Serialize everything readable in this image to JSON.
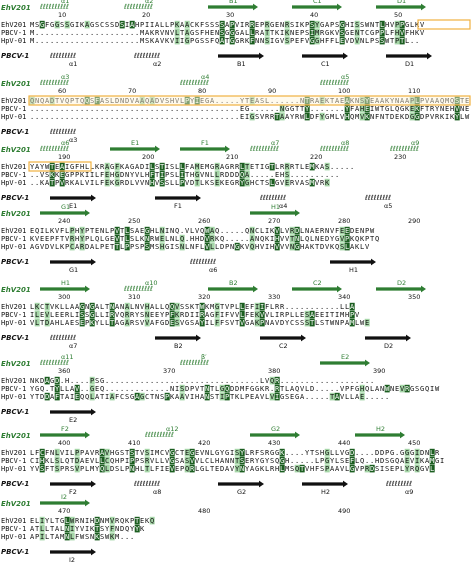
{
  "ref_label": "EhV201",
  "bottom_label": "PBCV-1",
  "seq_names": [
    "EhV201",
    "PBCV-1",
    "HpV-01"
  ],
  "colors": {
    "green": "#2e7d32",
    "identical_bg": "#1b5e20",
    "similar_bg": "#a5d6a7",
    "box": "#f0b040"
  },
  "blocks": [
    {
      "top_ss": [
        {
          "label": "α1",
          "kind": "helix"
        },
        {
          "label": "α2",
          "kind": "helix"
        },
        {
          "label": "B1",
          "kind": "arrow"
        },
        {
          "label": "C1",
          "kind": "arrow"
        },
        {
          "label": "D1",
          "kind": "arrow"
        }
      ],
      "numbers": [
        "10",
        "20",
        "30",
        "40",
        "50"
      ],
      "rows": [
        "MSGFGGSSGIKAGSCSSDSIAHPIIALLPKAACKFSSSSAPVIRREPRGENRSIKPSYGAPSGHISSWNTLHVPPGLKV",
        "M.....................MAKRVNVLTAGSFHENSGGGALLRATTKIKNEPSIMRGKVSGENTCGPPLFHVFHKV",
        "M.....................MSKAVKVIIGPGSSFQATGGRKFNNSIGVSPEFVGGHFFLEVDVNLPSSWTPTL.."
      ],
      "bottom_ss": [
        "α1",
        "α2",
        "B1",
        "C1",
        "D1"
      ]
    },
    {
      "top_ss": [
        {
          "label": "α3",
          "kind": "helix"
        },
        {
          "label": "α4",
          "kind": "helix"
        },
        {
          "label": "α5",
          "kind": "helix"
        }
      ],
      "numbers": [
        "60",
        "70",
        "80",
        "90",
        "100",
        "110"
      ],
      "rows": [
        "QNQADTVQPTQQSFASLDNDVAAQADVSHVLPYIEGA.....YTEASL......NTRAEKTAEAKNSYEAAKYNAAPLPVAAQMQSTEMPDF",
        "..........................................EG......NGGTTY.......YFAHEIWTGLQGKEKFTRYNEHVNEAHLRE",
        "..........................................EIGSVRRTAAYRWLDFYGMLVHQMVKNFNTDEKDGGDPVRKIKYLWQPRSSK"
      ],
      "bottom_ss": [
        "α3"
      ]
    },
    {
      "top_ss": [
        {
          "label": "α6",
          "kind": "helix"
        },
        {
          "label": "E1",
          "kind": "arrow"
        },
        {
          "label": "F1",
          "kind": "arrow"
        },
        {
          "label": "α7",
          "kind": "helix"
        },
        {
          "label": "α8",
          "kind": "helix"
        },
        {
          "label": "α9",
          "kind": "helix"
        }
      ],
      "numbers": [
        "190",
        "200",
        "210",
        "220",
        "230"
      ],
      "rows": [
        "YAYWTEAIGFHLLKRAGFKAGADILSTISLLFAMEMGRAGRRLTETIGTLRRRTLEMKAS.....",
        "..VSKKEGPPKIILFEHGDNYVLHFTIPSLITHGVNLLRDDDQA.....EHS..........",
        "..KATPVRKALVILFEKGRDLVVNHVSSLLPVDTLKSEKEGRYGHCTSLGVERVASMVRK"
      ],
      "bottom_ss": [
        "E1",
        "F1",
        "α4",
        "α5"
      ]
    },
    {
      "top_ss": [
        {
          "label": "G1",
          "kind": "arrow"
        },
        {
          "label": "H1",
          "kind": "arrow"
        }
      ],
      "numbers": [
        "240",
        "250",
        "260",
        "270",
        "280",
        "290"
      ],
      "rows": [
        "EQILKVFLPHYPTENLPVTLSAEGHLNINQ.VLVQWAQ.....QNCLIKVLVRDLNAERNVFEEDENPW",
        "KVEEPFTVRHYPLQLGEVTLSLKNRWELNLQ.HHDVRKQ.....ANQKIHVVTNLQLNEDYGVPKQKPTQ",
        "AGVDVLKPCARDALPETTLPPSPSMSHGISNLNFLVLLDPNGKVQHVIHVVVNGHAKTDVKQSLAKLV"
      ],
      "bottom_ss": [
        "G1",
        "α6",
        "H1"
      ]
    },
    {
      "top_ss": [
        {
          "label": "H1",
          "kind": "arrow"
        },
        {
          "label": "α10",
          "kind": "helix"
        },
        {
          "label": "B2",
          "kind": "arrow"
        },
        {
          "label": "C2",
          "kind": "arrow"
        },
        {
          "label": "D2",
          "kind": "arrow"
        }
      ],
      "numbers": [
        "300",
        "310",
        "320",
        "330",
        "340",
        "350"
      ],
      "rows": [
        "LKCTVKLLAAGNGALTNANALNVHALLQQVSSKTWKMGTVPLLEFIIFLRR...........LLA",
        "ILEVLEERLISSGLLIRVQRRYSNEEYPFKRDIIRAGFIFVVLFEKVVLIRPLLESAEEITIMHPV",
        "VLTDAHLAESEPKYLLTAGARSVVAFGDESVGSAYILFFSVTVGAKPNAVDYCSSSTLSTWNPAMLWE"
      ],
      "bottom_ss": [
        "α7",
        "B2",
        "C2",
        "D2"
      ]
    },
    {
      "top_ss": [
        {
          "label": "α11",
          "kind": "helix"
        },
        {
          "label": "β′",
          "kind": "helix"
        },
        {
          "label": "E2",
          "kind": "arrow"
        }
      ],
      "numbers": [
        "360",
        "370",
        "380",
        "390"
      ],
      "rows": [
        "NKDAGD.H....PSG...............................LVQR...................",
        "YGQ.TYLLAV..GEQ.............NISDPVTNTLGQDDMFGGKR.RTLAQVLD.....VPFGHQLANWNEVRGSGQIW",
        "YTDDAFTAIEQQLATIAFCSGAGCTNSPKAAVIHANSTIPTKLPEAVLVIGSEGA.....TAVLLAE....."
      ],
      "bottom_ss": [
        "E2"
      ]
    },
    {
      "top_ss": [
        {
          "label": "F2",
          "kind": "arrow"
        },
        {
          "label": "α12",
          "kind": "helix"
        },
        {
          "label": "G2",
          "kind": "arrow"
        },
        {
          "label": "H2",
          "kind": "arrow"
        }
      ],
      "numbers": [
        "400",
        "410",
        "420",
        "430",
        "440",
        "450"
      ],
      "rows": [
        "LFCFNLVILPPAVRAVHGSTSTVSIMCVGCTEGEVNLGYGISYLRFSRGGK....YTSHGLLVGD....DDPG.GGGIDNLR",
        "CIHKLSLQTDAEVLLCQHPIPPSRVLLVGSASVVLCLHANNTSERYGYSQGH.....LPGYLSEFLQ..HDSGQAEVIKAMGI",
        "YVSFTSPRSVPLMYQLDSLPNHLTLFIEVEPQRLGLTEDAVYNYAGKLRHLMSQTVHFSPAAVLGVPRDSISEPLYRQGVL"
      ],
      "bottom_ss": [
        "F2",
        "α8",
        "G2",
        "H2",
        "α9"
      ]
    },
    {
      "top_ss": [
        {
          "label": "I2",
          "kind": "arrow"
        }
      ],
      "numbers": [
        "470",
        "480",
        "490"
      ],
      "rows": [
        "ELIYLTGLWRNIHDNMVRQKPTEKQ",
        "ATLLTALNIYVIKTSYFNDQYYK",
        "APILTAMNLFWSNKSWKM..."
      ],
      "bottom_ss": [
        "I2"
      ]
    }
  ]
}
